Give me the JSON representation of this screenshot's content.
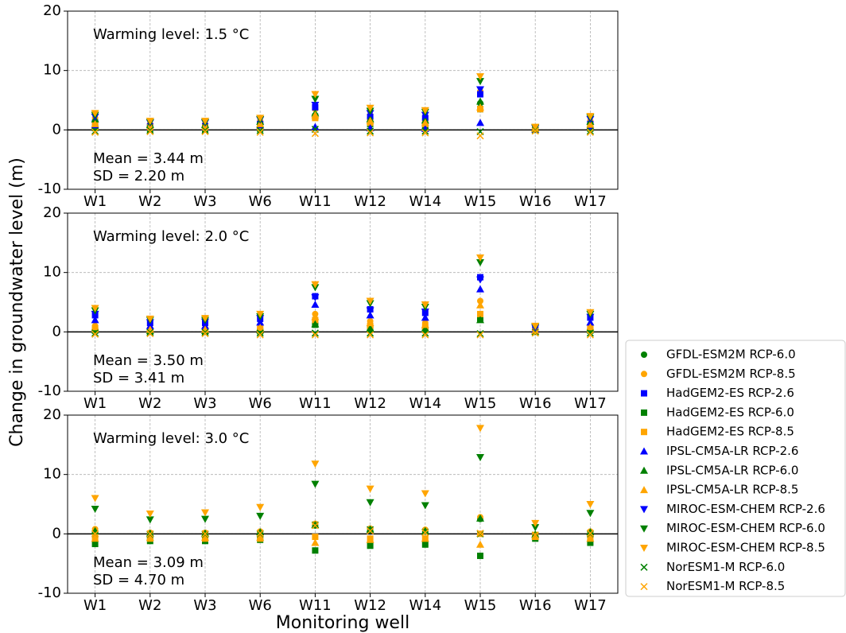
{
  "chart_data": [
    {
      "type": "scatter",
      "ylabel": "Change in groundwater level (m)",
      "annotations": [
        "Warming level: 1.5 °C",
        "Mean = 3.44 m",
        "SD = 2.20 m"
      ],
      "categories": [
        "W1",
        "W2",
        "W3",
        "W6",
        "W11",
        "W12",
        "W14",
        "W15",
        "W16",
        "W17"
      ],
      "ylim": [
        -10,
        20
      ],
      "yticks": [
        -10,
        0,
        10,
        20
      ],
      "grid": true,
      "hline": 0,
      "series": [
        {
          "name": "GFDL-ESM2M RCP-6.0",
          "color": "#008000",
          "marker": "o",
          "values": [
            1.5,
            0.8,
            0.8,
            1.2,
            2.5,
            2.0,
            1.8,
            4.5,
            0.2,
            1.2
          ]
        },
        {
          "name": "GFDL-ESM2M RCP-8.5",
          "color": "#ffa500",
          "marker": "o",
          "values": [
            2.0,
            1.0,
            1.0,
            1.5,
            3.5,
            2.5,
            2.2,
            6.5,
            0.3,
            1.5
          ]
        },
        {
          "name": "HadGEM2-ES RCP-2.6",
          "color": "#0000ff",
          "marker": "s",
          "values": [
            1.2,
            0.6,
            0.6,
            1.0,
            3.8,
            2.2,
            2.0,
            6.0,
            0.2,
            1.0
          ]
        },
        {
          "name": "HadGEM2-ES RCP-6.0",
          "color": "#008000",
          "marker": "s",
          "values": [
            0.3,
            0.1,
            0.1,
            0.2,
            2.2,
            1.0,
            0.5,
            3.5,
            0.0,
            0.2
          ]
        },
        {
          "name": "HadGEM2-ES RCP-8.5",
          "color": "#ffa500",
          "marker": "s",
          "values": [
            0.8,
            0.4,
            0.4,
            0.6,
            2.0,
            1.2,
            1.0,
            3.5,
            0.1,
            0.6
          ]
        },
        {
          "name": "IPSL-CM5A-LR RCP-2.6",
          "color": "#0000ff",
          "marker": "^",
          "values": [
            0.8,
            0.5,
            0.5,
            0.8,
            0.5,
            0.3,
            0.2,
            1.2,
            0.1,
            0.6
          ]
        },
        {
          "name": "IPSL-CM5A-LR RCP-6.0",
          "color": "#008000",
          "marker": "^",
          "values": [
            1.8,
            0.9,
            0.9,
            1.4,
            2.8,
            1.8,
            1.6,
            4.8,
            0.2,
            1.4
          ]
        },
        {
          "name": "IPSL-CM5A-LR RCP-8.5",
          "color": "#ffa500",
          "marker": "^",
          "values": [
            1.0,
            0.6,
            0.6,
            1.0,
            2.5,
            1.5,
            1.2,
            3.8,
            0.2,
            0.9
          ]
        },
        {
          "name": "MIROC-ESM-CHEM RCP-2.6",
          "color": "#0000ff",
          "marker": "v",
          "values": [
            2.2,
            1.2,
            1.2,
            1.7,
            4.2,
            2.8,
            2.5,
            6.8,
            0.3,
            1.8
          ]
        },
        {
          "name": "MIROC-ESM-CHEM RCP-6.0",
          "color": "#008000",
          "marker": "v",
          "values": [
            2.5,
            1.3,
            1.3,
            1.8,
            5.2,
            3.2,
            3.0,
            8.2,
            0.4,
            2.1
          ]
        },
        {
          "name": "MIROC-ESM-CHEM RCP-8.5",
          "color": "#ffa500",
          "marker": "v",
          "values": [
            2.8,
            1.5,
            1.5,
            2.0,
            6.0,
            3.7,
            3.3,
            9.0,
            0.5,
            2.3
          ]
        },
        {
          "name": "NorESM1-M RCP-6.0",
          "color": "#008000",
          "marker": "x",
          "values": [
            -0.2,
            -0.1,
            -0.1,
            -0.1,
            0.1,
            -0.2,
            -0.2,
            -0.3,
            -0.1,
            -0.2
          ]
        },
        {
          "name": "NorESM1-M RCP-8.5",
          "color": "#ffa500",
          "marker": "x",
          "values": [
            -0.4,
            -0.3,
            -0.3,
            -0.4,
            -0.6,
            -0.5,
            -0.5,
            -1.0,
            -0.2,
            -0.4
          ]
        }
      ]
    },
    {
      "type": "scatter",
      "annotations": [
        "Warming level: 2.0 °C",
        "Mean = 3.50 m",
        "SD = 3.41 m"
      ],
      "categories": [
        "W1",
        "W2",
        "W3",
        "W6",
        "W11",
        "W12",
        "W14",
        "W15",
        "W16",
        "W17"
      ],
      "ylim": [
        -10,
        20
      ],
      "yticks": [
        -10,
        0,
        10,
        20
      ],
      "grid": true,
      "hline": 0,
      "series": [
        {
          "name": "GFDL-ESM2M RCP-6.0",
          "color": "#008000",
          "marker": "o",
          "values": [
            0.5,
            0.2,
            0.2,
            0.4,
            1.5,
            0.8,
            0.6,
            2.5,
            0.1,
            0.5
          ]
        },
        {
          "name": "GFDL-ESM2M RCP-8.5",
          "color": "#ffa500",
          "marker": "o",
          "values": [
            1.0,
            0.5,
            0.5,
            0.8,
            3.0,
            1.8,
            1.5,
            5.2,
            0.2,
            0.9
          ]
        },
        {
          "name": "HadGEM2-ES RCP-2.6",
          "color": "#0000ff",
          "marker": "s",
          "values": [
            2.8,
            1.5,
            1.5,
            2.2,
            6.0,
            3.8,
            3.2,
            9.2,
            0.6,
            2.4
          ]
        },
        {
          "name": "HadGEM2-ES RCP-6.0",
          "color": "#008000",
          "marker": "s",
          "values": [
            0.2,
            0.0,
            0.0,
            0.1,
            1.2,
            0.5,
            0.3,
            2.2,
            0.0,
            0.2
          ]
        },
        {
          "name": "HadGEM2-ES RCP-8.5",
          "color": "#ffa500",
          "marker": "s",
          "values": [
            0.6,
            0.3,
            0.3,
            0.5,
            2.0,
            1.0,
            0.8,
            3.0,
            0.1,
            0.6
          ]
        },
        {
          "name": "IPSL-CM5A-LR RCP-2.6",
          "color": "#0000ff",
          "marker": "^",
          "values": [
            2.0,
            1.0,
            1.0,
            1.6,
            4.6,
            2.8,
            2.4,
            7.2,
            0.4,
            1.6
          ]
        },
        {
          "name": "IPSL-CM5A-LR RCP-6.0",
          "color": "#008000",
          "marker": "^",
          "values": [
            0.4,
            0.2,
            0.2,
            0.3,
            1.3,
            0.6,
            0.5,
            2.0,
            0.1,
            0.4
          ]
        },
        {
          "name": "IPSL-CM5A-LR RCP-8.5",
          "color": "#ffa500",
          "marker": "^",
          "values": [
            0.8,
            0.4,
            0.4,
            0.7,
            2.5,
            1.5,
            1.2,
            4.5,
            0.2,
            0.8
          ]
        },
        {
          "name": "MIROC-ESM-CHEM RCP-2.6",
          "color": "#0000ff",
          "marker": "v",
          "values": [
            3.0,
            1.6,
            1.7,
            2.3,
            5.8,
            3.6,
            3.4,
            8.8,
            0.7,
            2.5
          ]
        },
        {
          "name": "MIROC-ESM-CHEM RCP-6.0",
          "color": "#008000",
          "marker": "v",
          "values": [
            3.6,
            2.0,
            2.0,
            2.6,
            7.5,
            4.8,
            4.2,
            11.7,
            0.9,
            3.0
          ]
        },
        {
          "name": "MIROC-ESM-CHEM RCP-8.5",
          "color": "#ffa500",
          "marker": "v",
          "values": [
            4.0,
            2.2,
            2.3,
            3.0,
            8.0,
            5.2,
            4.6,
            12.5,
            1.0,
            3.3
          ]
        },
        {
          "name": "NorESM1-M RCP-6.0",
          "color": "#008000",
          "marker": "x",
          "values": [
            -0.2,
            -0.1,
            -0.1,
            -0.2,
            -0.2,
            -0.2,
            -0.2,
            -0.3,
            -0.1,
            -0.2
          ]
        },
        {
          "name": "NorESM1-M RCP-8.5",
          "color": "#ffa500",
          "marker": "x",
          "values": [
            -0.4,
            -0.3,
            -0.3,
            -0.5,
            -0.5,
            -0.5,
            -0.5,
            -0.5,
            -0.2,
            -0.5
          ]
        }
      ]
    },
    {
      "type": "scatter",
      "xlabel": "Monitoring well",
      "annotations": [
        "Warming level: 3.0 °C",
        "Mean = 3.09 m",
        "SD = 4.70 m"
      ],
      "categories": [
        "W1",
        "W2",
        "W3",
        "W6",
        "W11",
        "W12",
        "W14",
        "W15",
        "W16",
        "W17"
      ],
      "ylim": [
        -10,
        20
      ],
      "yticks": [
        -10,
        0,
        10,
        20
      ],
      "grid": true,
      "hline": 0,
      "series": [
        {
          "name": "GFDL-ESM2M RCP-6.0",
          "color": "#008000",
          "marker": "o",
          "values": [
            0.3,
            0.0,
            0.0,
            0.2,
            1.4,
            0.6,
            0.4,
            2.5,
            -0.2,
            0.2
          ]
        },
        {
          "name": "GFDL-ESM2M RCP-8.5",
          "color": "#ffa500",
          "marker": "o",
          "values": [
            0.8,
            0.2,
            0.2,
            0.4,
            1.7,
            0.9,
            0.7,
            2.8,
            -0.1,
            0.4
          ]
        },
        {
          "name": "HadGEM2-ES RCP-6.0",
          "color": "#008000",
          "marker": "s",
          "values": [
            -1.7,
            -1.2,
            -1.2,
            -1.0,
            -2.8,
            -2.0,
            -1.8,
            -3.7,
            -0.8,
            -1.5
          ]
        },
        {
          "name": "HadGEM2-ES RCP-8.5",
          "color": "#ffa500",
          "marker": "s",
          "values": [
            -0.5,
            -0.8,
            -0.8,
            -0.8,
            -0.5,
            -0.8,
            -0.8,
            0.0,
            -0.5,
            -0.6
          ]
        },
        {
          "name": "IPSL-CM5A-LR RCP-6.0",
          "color": "#008000",
          "marker": "^",
          "values": [
            0.5,
            0.1,
            0.1,
            0.3,
            1.5,
            0.8,
            0.5,
            2.6,
            -0.1,
            0.3
          ]
        },
        {
          "name": "IPSL-CM5A-LR RCP-8.5",
          "color": "#ffa500",
          "marker": "^",
          "values": [
            -0.8,
            -0.6,
            -0.6,
            -0.6,
            -1.5,
            -1.0,
            -0.8,
            -1.8,
            -0.4,
            -0.8
          ]
        },
        {
          "name": "MIROC-ESM-CHEM RCP-6.0",
          "color": "#008000",
          "marker": "v",
          "values": [
            4.2,
            2.4,
            2.5,
            3.0,
            8.4,
            5.3,
            4.8,
            12.9,
            1.1,
            3.5
          ]
        },
        {
          "name": "MIROC-ESM-CHEM RCP-8.5",
          "color": "#ffa500",
          "marker": "v",
          "values": [
            6.0,
            3.4,
            3.6,
            4.5,
            11.8,
            7.6,
            6.8,
            17.8,
            1.8,
            5.0
          ]
        },
        {
          "name": "NorESM1-M RCP-6.0",
          "color": "#008000",
          "marker": "x",
          "values": [
            0.0,
            -0.1,
            -0.1,
            0.0,
            1.5,
            0.7,
            0.3,
            0.0,
            -0.2,
            0.0
          ]
        },
        {
          "name": "NorESM1-M RCP-8.5",
          "color": "#ffa500",
          "marker": "x",
          "values": [
            0.0,
            0.0,
            0.0,
            0.1,
            1.4,
            0.5,
            0.2,
            0.1,
            -0.2,
            0.1
          ]
        }
      ]
    }
  ]
}
